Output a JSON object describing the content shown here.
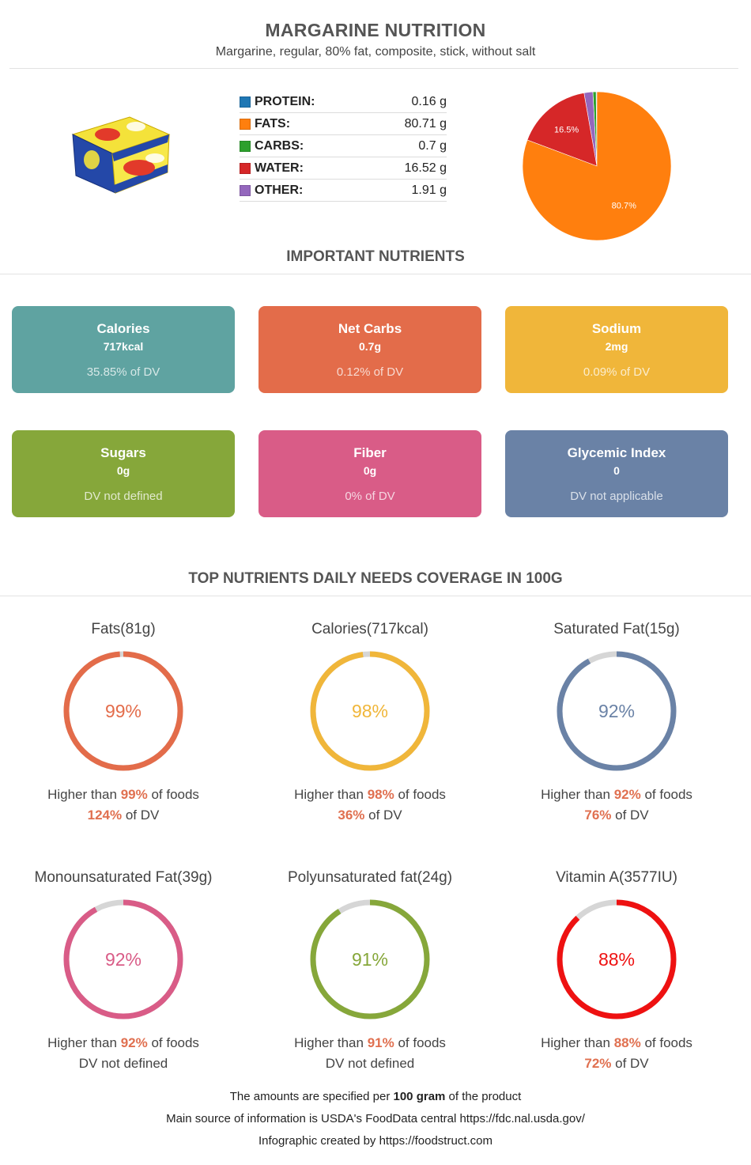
{
  "header": {
    "title": "MARGARINE NUTRITION",
    "subtitle": "Margarine, regular, 80% fat, composite, stick, without salt"
  },
  "macros": [
    {
      "name": "PROTEIN:",
      "value": "0.16 g",
      "color": "#1f77b4"
    },
    {
      "name": "FATS:",
      "value": "80.71 g",
      "color": "#ff7f0e"
    },
    {
      "name": "CARBS:",
      "value": "0.7 g",
      "color": "#2ca02c"
    },
    {
      "name": "WATER:",
      "value": "16.52 g",
      "color": "#d62728"
    },
    {
      "name": "OTHER:",
      "value": "1.91 g",
      "color": "#9467bd"
    }
  ],
  "chart_data": {
    "type": "pie",
    "labels": [
      "PROTEIN",
      "FATS",
      "CARBS",
      "WATER",
      "OTHER"
    ],
    "values": [
      0.16,
      80.71,
      0.7,
      16.52,
      1.91
    ],
    "colors": [
      "#1f77b4",
      "#ff7f0e",
      "#2ca02c",
      "#d62728",
      "#9467bd"
    ],
    "slice_labels": [
      "",
      "80.7%",
      "",
      "16.5%",
      ""
    ]
  },
  "important": {
    "title": "IMPORTANT NUTRIENTS",
    "cards": [
      {
        "name": "Calories",
        "value": "717kcal",
        "dv": "35.85% of DV",
        "color": "#5fa3a1"
      },
      {
        "name": "Net Carbs",
        "value": "0.7g",
        "dv": "0.12% of DV",
        "color": "#e36c4a"
      },
      {
        "name": "Sodium",
        "value": "2mg",
        "dv": "0.09% of DV",
        "color": "#f0b63a"
      },
      {
        "name": "Sugars",
        "value": "0g",
        "dv": "DV not defined",
        "color": "#86a73a"
      },
      {
        "name": "Fiber",
        "value": "0g",
        "dv": "0% of DV",
        "color": "#d95c87"
      },
      {
        "name": "Glycemic Index",
        "value": "0",
        "dv": "DV not applicable",
        "color": "#6a82a6"
      }
    ]
  },
  "coverage": {
    "title": "TOP NUTRIENTS DAILY NEEDS COVERAGE IN 100G",
    "higher_prefix": "Higher than ",
    "higher_suffix": " of foods",
    "dv_suffix": " of DV",
    "items": [
      {
        "label": "Fats(81g)",
        "percent": 99,
        "percent_text": "99%",
        "higher": "99%",
        "dv": "124%",
        "dv_text": "",
        "color": "#e36c4a"
      },
      {
        "label": "Calories(717kcal)",
        "percent": 98,
        "percent_text": "98%",
        "higher": "98%",
        "dv": "36%",
        "dv_text": "",
        "color": "#f0b63a"
      },
      {
        "label": "Saturated Fat(15g)",
        "percent": 92,
        "percent_text": "92%",
        "higher": "92%",
        "dv": "76%",
        "dv_text": "",
        "color": "#6a82a6"
      },
      {
        "label": "Monounsaturated Fat(39g)",
        "percent": 92,
        "percent_text": "92%",
        "higher": "92%",
        "dv": "",
        "dv_text": "DV not defined",
        "color": "#d95c87"
      },
      {
        "label": "Polyunsaturated fat(24g)",
        "percent": 91,
        "percent_text": "91%",
        "higher": "91%",
        "dv": "",
        "dv_text": "DV not defined",
        "color": "#86a73a"
      },
      {
        "label": "Vitamin A(3577IU)",
        "percent": 88,
        "percent_text": "88%",
        "higher": "88%",
        "dv": "72%",
        "dv_text": "",
        "color": "#ee1111"
      }
    ]
  },
  "footer": {
    "line1_pre": "The amounts are specified per ",
    "line1_bold": "100 gram",
    "line1_post": " of the product",
    "line2": "Main source of information is USDA's FoodData central https://fdc.nal.usda.gov/",
    "line3": "Infographic created by https://foodstruct.com"
  }
}
